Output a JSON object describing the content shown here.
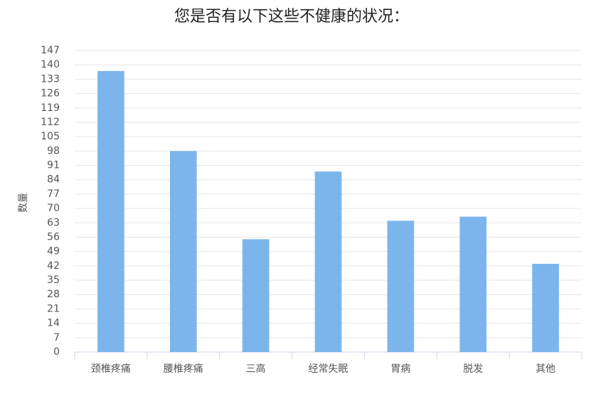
{
  "chart_data": {
    "type": "bar",
    "title": "您是否有以下这些不健康的状况：",
    "y_label": "数量",
    "categories": [
      "颈椎疼痛",
      "腰椎疼痛",
      "三高",
      "经常失眠",
      "胃病",
      "脱发",
      "其他"
    ],
    "values": [
      137,
      98,
      55,
      88,
      64,
      66,
      43
    ],
    "color": "#7cb5ec",
    "ylim": [
      0,
      147
    ],
    "yticks": [
      0,
      7,
      14,
      21,
      28,
      35,
      42,
      49,
      56,
      63,
      70,
      77,
      84,
      91,
      98,
      105,
      112,
      119,
      126,
      133,
      140,
      147
    ],
    "grid": true
  }
}
